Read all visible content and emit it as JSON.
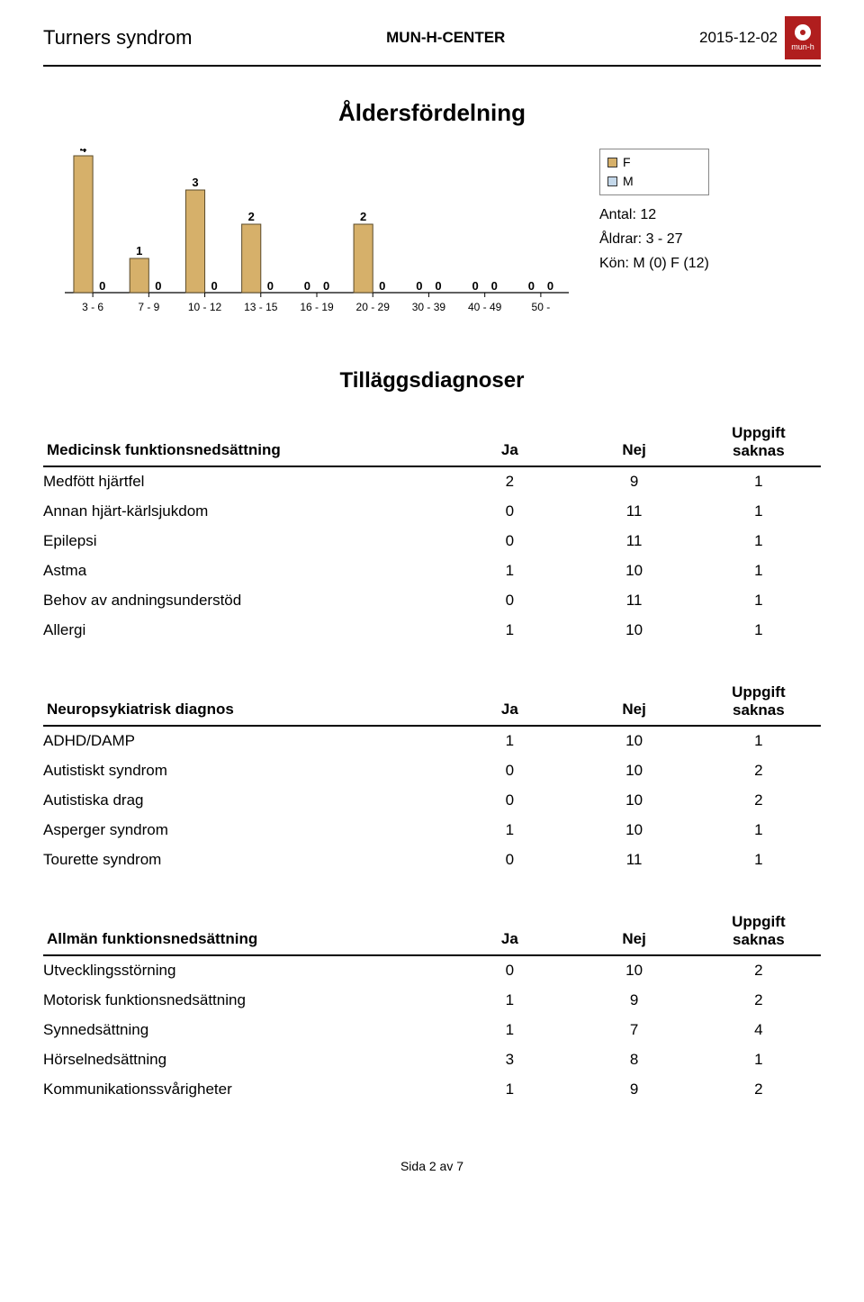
{
  "header": {
    "title_left": "Turners syndrom",
    "center": "MUN-H-CENTER",
    "date": "2015-12-02",
    "logo_text": "mun-h"
  },
  "page_title": "Åldersfördelning",
  "chart": {
    "type": "bar",
    "categories": [
      "3 - 6",
      "7 - 9",
      "10 - 12",
      "13 - 15",
      "16 - 19",
      "20 - 29",
      "30 - 39",
      "40 - 49",
      "50 -"
    ],
    "series": [
      {
        "name": "F",
        "color": "#d6b06a",
        "values": [
          4,
          1,
          3,
          2,
          0,
          2,
          0,
          0,
          0
        ]
      },
      {
        "name": "M",
        "color": "#c4d8ea",
        "values": [
          0,
          0,
          0,
          0,
          0,
          0,
          0,
          0,
          0
        ]
      }
    ],
    "ylim": [
      0,
      4
    ],
    "bar_border": "#5b4b2a",
    "axis_color": "#000000",
    "label_fontsize": 12,
    "value_fontsize": 13
  },
  "legend": {
    "items": [
      "F",
      "M"
    ],
    "colors": [
      "#d6b06a",
      "#c4d8ea"
    ]
  },
  "info": {
    "antal_label": "Antal:",
    "antal": 12,
    "aldrar_label": "Åldrar:",
    "aldrar": "3 - 27",
    "kon_label": "Kön:",
    "kon": "M (0) F (12)"
  },
  "section2_title": "Tilläggsdiagnoser",
  "col_ja": "Ja",
  "col_nej": "Nej",
  "col_saknas_l1": "Uppgift",
  "col_saknas_l2": "saknas",
  "tables": [
    {
      "heading": "Medicinsk funktionsnedsättning",
      "rows": [
        {
          "label": "Medfött hjärtfel",
          "ja": 2,
          "nej": 9,
          "saknas": 1
        },
        {
          "label": "Annan hjärt-kärlsjukdom",
          "ja": 0,
          "nej": 11,
          "saknas": 1
        },
        {
          "label": "Epilepsi",
          "ja": 0,
          "nej": 11,
          "saknas": 1
        },
        {
          "label": "Astma",
          "ja": 1,
          "nej": 10,
          "saknas": 1
        },
        {
          "label": "Behov av andningsunderstöd",
          "ja": 0,
          "nej": 11,
          "saknas": 1
        },
        {
          "label": "Allergi",
          "ja": 1,
          "nej": 10,
          "saknas": 1
        }
      ]
    },
    {
      "heading": "Neuropsykiatrisk diagnos",
      "rows": [
        {
          "label": "ADHD/DAMP",
          "ja": 1,
          "nej": 10,
          "saknas": 1
        },
        {
          "label": "Autistiskt syndrom",
          "ja": 0,
          "nej": 10,
          "saknas": 2
        },
        {
          "label": "Autistiska drag",
          "ja": 0,
          "nej": 10,
          "saknas": 2
        },
        {
          "label": "Asperger syndrom",
          "ja": 1,
          "nej": 10,
          "saknas": 1
        },
        {
          "label": "Tourette syndrom",
          "ja": 0,
          "nej": 11,
          "saknas": 1
        }
      ]
    },
    {
      "heading": "Allmän funktionsnedsättning",
      "rows": [
        {
          "label": "Utvecklingsstörning",
          "ja": 0,
          "nej": 10,
          "saknas": 2
        },
        {
          "label": "Motorisk funktionsnedsättning",
          "ja": 1,
          "nej": 9,
          "saknas": 2
        },
        {
          "label": "Synnedsättning",
          "ja": 1,
          "nej": 7,
          "saknas": 4
        },
        {
          "label": "Hörselnedsättning",
          "ja": 3,
          "nej": 8,
          "saknas": 1
        },
        {
          "label": "Kommunikationssvårigheter",
          "ja": 1,
          "nej": 9,
          "saknas": 2
        }
      ]
    }
  ],
  "footer": "Sida 2 av 7"
}
